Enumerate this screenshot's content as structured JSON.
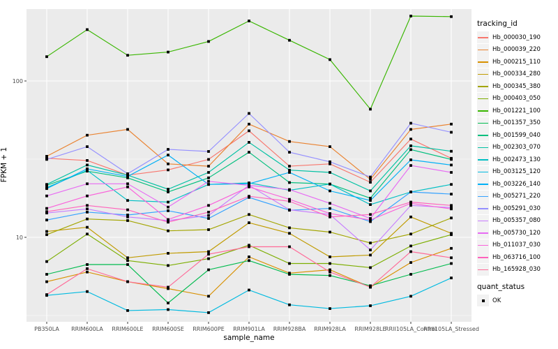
{
  "chart_data": {
    "type": "line",
    "title": "",
    "xlabel": "sample_name",
    "ylabel": "FPKM + 1",
    "y_scale": "log10",
    "ylim": [
      3.2,
      290
    ],
    "y_ticks": [
      10,
      100
    ],
    "y_tick_labels": [
      "10",
      "100"
    ],
    "y_minor": [
      3.162,
      31.62,
      316.2
    ],
    "grid": true,
    "legend_position": "right",
    "panel_bg": "#EBEBEB",
    "grid_color": "#FFFFFF",
    "axis_text_color": "#4D4D4D",
    "tick_mark_color": "#333333",
    "point_color": "#000000",
    "point_shape": "square",
    "categories": [
      "PB350LA",
      "RRIM600LA",
      "RRIM600LE",
      "RRIM600SE",
      "RRIM600PE",
      "RRIM901LA",
      "RRIM928BA",
      "RRIM928LA",
      "RRIM928LE",
      "RRII105LA_Control",
      "RRII105LA_Stressed"
    ],
    "series": [
      {
        "name": "Hb_000030_190",
        "color": "#F8766D",
        "values": [
          32,
          31,
          25,
          27,
          31.5,
          48,
          28.5,
          29.5,
          22.5,
          42.5,
          32
        ]
      },
      {
        "name": "Hb_000039_220",
        "color": "#EA8331",
        "values": [
          33,
          45,
          49,
          29.5,
          28.5,
          53,
          41,
          38,
          23.5,
          49,
          53
        ]
      },
      {
        "name": "Hb_000215_110",
        "color": "#D89000",
        "values": [
          5.2,
          6.0,
          5.2,
          4.7,
          4.2,
          7.5,
          5.9,
          6.2,
          4.8,
          6.9,
          8.5
        ]
      },
      {
        "name": "Hb_000334_280",
        "color": "#C09B00",
        "values": [
          10.9,
          11.6,
          7.4,
          7.9,
          8.1,
          12.4,
          10.6,
          7.5,
          7.7,
          13.5,
          10.6
        ]
      },
      {
        "name": "Hb_000345_380",
        "color": "#A3A500",
        "values": [
          10.4,
          13.1,
          12.8,
          11.0,
          11.2,
          14.0,
          11.5,
          10.8,
          9.2,
          10.5,
          13.3
        ]
      },
      {
        "name": "Hb_000403_050",
        "color": "#7CAE00",
        "values": [
          7.0,
          10.5,
          7.1,
          6.6,
          7.3,
          8.9,
          6.8,
          6.8,
          6.4,
          8.8,
          10.4
        ]
      },
      {
        "name": "Hb_001221_100",
        "color": "#39B600",
        "values": [
          143,
          213,
          146,
          153,
          179,
          242,
          182,
          137,
          66,
          260,
          258
        ]
      },
      {
        "name": "Hb_001357_350",
        "color": "#00BB4E",
        "values": [
          5.8,
          6.7,
          6.7,
          3.8,
          6.2,
          7.1,
          5.8,
          5.7,
          4.9,
          5.8,
          6.8
        ]
      },
      {
        "name": "Hb_001599_040",
        "color": "#00BF7D",
        "values": [
          21.5,
          26.5,
          24.0,
          19.5,
          24.0,
          35.0,
          22.4,
          21.9,
          17.8,
          36.4,
          31.5
        ]
      },
      {
        "name": "Hb_002303_070",
        "color": "#00C1A3",
        "values": [
          21.8,
          29.0,
          25.0,
          20.3,
          26.0,
          40.5,
          26.9,
          26.0,
          19.8,
          38.5,
          35.5
        ]
      },
      {
        "name": "Hb_002473_130",
        "color": "#00BFC4",
        "values": [
          20.8,
          26.8,
          17.2,
          16.8,
          21.8,
          22.3,
          20.0,
          21.9,
          16.2,
          19.5,
          21.8
        ]
      },
      {
        "name": "Hb_003125_120",
        "color": "#00BAE0",
        "values": [
          4.25,
          4.5,
          3.4,
          3.45,
          3.3,
          4.6,
          3.7,
          3.5,
          3.65,
          4.2,
          5.5
        ]
      },
      {
        "name": "Hb_003226_140",
        "color": "#00B0F6",
        "values": [
          20.5,
          27.4,
          24.5,
          33.6,
          21.8,
          22.0,
          26.0,
          19.8,
          17.2,
          31.3,
          29.0
        ]
      },
      {
        "name": "Hb_005271_220",
        "color": "#35A2FF",
        "values": [
          12.9,
          14.5,
          13.9,
          14.8,
          13.2,
          18.0,
          14.9,
          15.3,
          12.6,
          19.5,
          18.9
        ]
      },
      {
        "name": "Hb_005291_030",
        "color": "#9590FF",
        "values": [
          31.5,
          38,
          25.5,
          36.5,
          35.4,
          62,
          35,
          30.4,
          24.3,
          53.7,
          47
        ]
      },
      {
        "name": "Hb_005357_080",
        "color": "#C77CFF",
        "values": [
          14.3,
          15.2,
          13.5,
          12.8,
          13.8,
          21.5,
          15.0,
          14.0,
          8.3,
          16.0,
          15.5
        ]
      },
      {
        "name": "Hb_005730_120",
        "color": "#E76BF3",
        "values": [
          18.4,
          22.0,
          22.0,
          15.6,
          22.8,
          21.5,
          20.2,
          16.5,
          13.2,
          28.8,
          26.0
        ]
      },
      {
        "name": "Hb_011037_030",
        "color": "#FA62DB",
        "values": [
          15.3,
          18.4,
          21.0,
          13.0,
          16.0,
          21.0,
          17.5,
          14.2,
          12.9,
          16.5,
          15.2
        ]
      },
      {
        "name": "Hb_063716_100",
        "color": "#FF62BC",
        "values": [
          14.6,
          16.0,
          15.0,
          12.5,
          14.5,
          18.3,
          17.0,
          13.5,
          14.0,
          16.8,
          16.0
        ]
      },
      {
        "name": "Hb_165928_030",
        "color": "#FF6A98",
        "values": [
          4.3,
          6.3,
          5.2,
          4.8,
          7.8,
          8.7,
          8.7,
          6.0,
          4.8,
          8.1,
          7.4
        ]
      }
    ],
    "legend": {
      "color_title": "tracking_id",
      "shape_title": "quant_status",
      "shape_items": [
        {
          "label": "OK"
        }
      ]
    }
  }
}
